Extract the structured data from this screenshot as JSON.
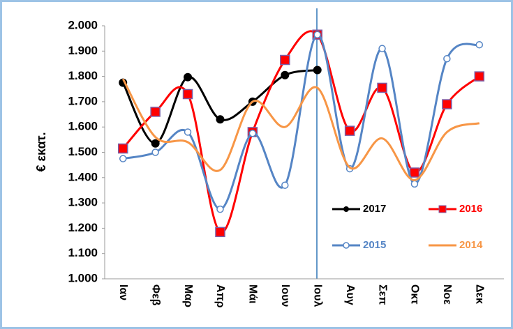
{
  "chart_data": {
    "type": "line",
    "y_label": "€ εκατ.",
    "categories": [
      "Ιαν",
      "Φεβ",
      "Μαρ",
      "Απρ",
      "Μάι",
      "Ιουν",
      "Ιουλ",
      "Αυγ",
      "Σεπ",
      "Οκτ",
      "Νοε",
      "Δεκ"
    ],
    "series": [
      {
        "name": "2017",
        "color": "#000000",
        "marker": "circle",
        "values": [
          1775,
          1535,
          1797,
          1630,
          1700,
          1805,
          1825,
          null,
          null,
          null,
          null,
          null
        ]
      },
      {
        "name": "2016",
        "color": "#ff0000",
        "marker": "square",
        "values": [
          1515,
          1660,
          1730,
          1185,
          1580,
          1865,
          1965,
          1585,
          1755,
          1420,
          1690,
          1800
        ]
      },
      {
        "name": "2015",
        "color": "#5585c5",
        "marker": "open-circle",
        "values": [
          1475,
          1500,
          1580,
          1275,
          1575,
          1370,
          1965,
          1435,
          1910,
          1375,
          1870,
          1925
        ]
      },
      {
        "name": "2014",
        "color": "#f79646",
        "marker": null,
        "values": [
          1790,
          1560,
          1540,
          1430,
          1700,
          1600,
          1755,
          1440,
          1555,
          1390,
          1580,
          1615
        ]
      }
    ],
    "smooth": true,
    "ylim": [
      1000,
      2000
    ],
    "yticks": [
      {
        "value": 1000,
        "label": "1.000"
      },
      {
        "value": 1100,
        "label": "1.100"
      },
      {
        "value": 1200,
        "label": "1.200"
      },
      {
        "value": 1300,
        "label": "1.300"
      },
      {
        "value": 1400,
        "label": "1.400"
      },
      {
        "value": 1500,
        "label": "1.500"
      },
      {
        "value": 1600,
        "label": "1.600"
      },
      {
        "value": 1700,
        "label": "1.700"
      },
      {
        "value": 1800,
        "label": "1.800"
      },
      {
        "value": 1900,
        "label": "1.900"
      },
      {
        "value": 2000,
        "label": "2.000"
      }
    ],
    "grid": false
  }
}
